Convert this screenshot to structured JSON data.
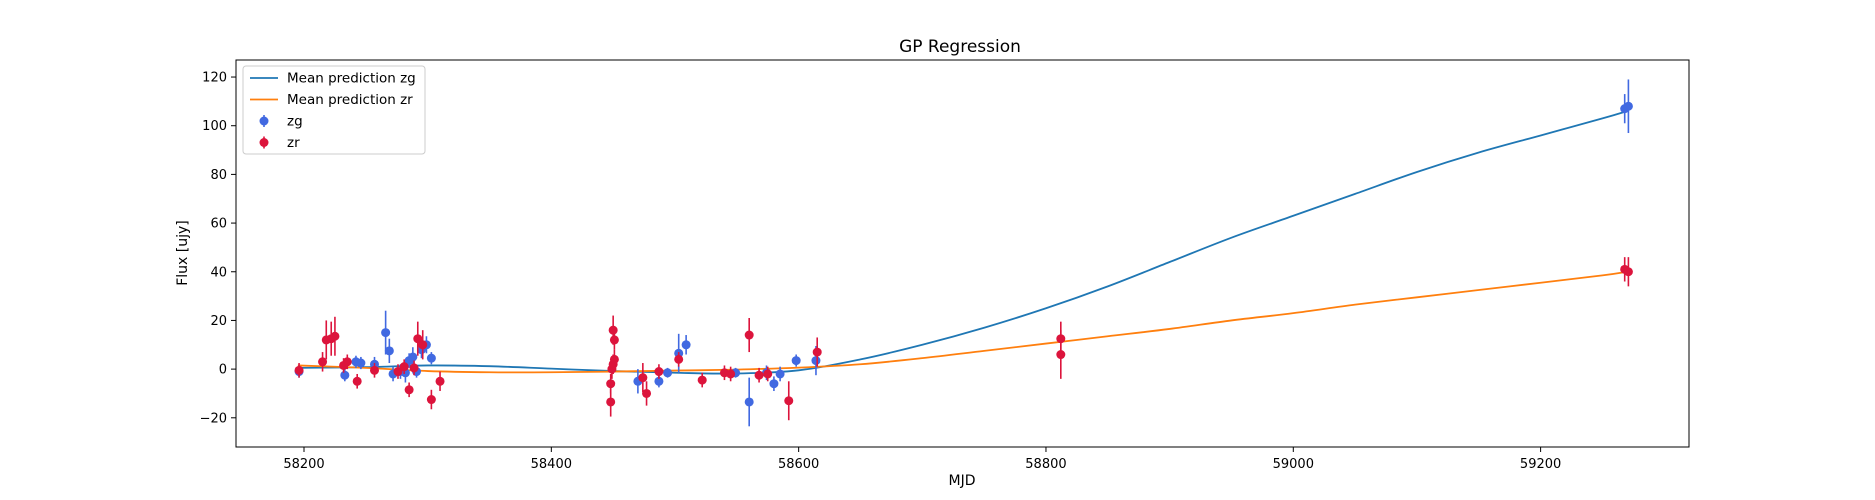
{
  "chart_data": {
    "type": "scatter",
    "title": "GP Regression",
    "xlabel": "MJD",
    "ylabel": "Flux [ujy]",
    "xlim": [
      58145,
      59320
    ],
    "ylim": [
      -32,
      127
    ],
    "xticks": [
      58200,
      58400,
      58600,
      58800,
      59000,
      59200
    ],
    "yticks": [
      -20,
      0,
      20,
      40,
      60,
      80,
      100,
      120
    ],
    "grid": false,
    "legend_position": "top-left",
    "colors": {
      "mean_zg": "#1f77b4",
      "mean_zr": "#ff7f0e",
      "zg": "#4169e1",
      "zr": "#dc143c"
    },
    "legend": [
      {
        "label": "Mean prediction zg",
        "kind": "line",
        "color": "#1f77b4"
      },
      {
        "label": "Mean prediction zr",
        "kind": "line",
        "color": "#ff7f0e"
      },
      {
        "label": "zg",
        "kind": "errorbar",
        "color": "#4169e1"
      },
      {
        "label": "zr",
        "kind": "errorbar",
        "color": "#dc143c"
      }
    ],
    "lines": [
      {
        "name": "Mean prediction zg",
        "color": "#1f77b4",
        "x": [
          58195,
          58250,
          58300,
          58350,
          58400,
          58450,
          58500,
          58550,
          58600,
          58650,
          58700,
          58750,
          58800,
          58850,
          58900,
          58950,
          59000,
          59050,
          59100,
          59150,
          59200,
          59250,
          59270
        ],
        "y": [
          0.5,
          0.8,
          1.5,
          1.2,
          0.2,
          -0.8,
          -1.5,
          -1.8,
          -0.5,
          4,
          10,
          17,
          25,
          34,
          44,
          54,
          63,
          72,
          81,
          89,
          96,
          103,
          106
        ]
      },
      {
        "name": "Mean prediction zr",
        "color": "#ff7f0e",
        "x": [
          58195,
          58250,
          58300,
          58350,
          58400,
          58450,
          58500,
          58550,
          58600,
          58650,
          58700,
          58750,
          58800,
          58850,
          58900,
          58950,
          59000,
          59050,
          59100,
          59150,
          59200,
          59250,
          59270
        ],
        "y": [
          1.5,
          0.5,
          -0.8,
          -1.3,
          -1.3,
          -1,
          -0.6,
          -0.2,
          0.6,
          2,
          4.5,
          7.5,
          10.5,
          13.5,
          16.5,
          20,
          23,
          26.5,
          29.5,
          32.5,
          35.5,
          38.5,
          40
        ]
      }
    ],
    "series": [
      {
        "name": "zg",
        "color": "#4169e1",
        "points": [
          {
            "x": 58196,
            "y": -1,
            "err": 2.5
          },
          {
            "x": 58233,
            "y": -2.5,
            "err": 2.5
          },
          {
            "x": 58242,
            "y": 3,
            "err": 2.5
          },
          {
            "x": 58246,
            "y": 2.5,
            "err": 2.5
          },
          {
            "x": 58257,
            "y": 2,
            "err": 3
          },
          {
            "x": 58266,
            "y": 15,
            "err": 9
          },
          {
            "x": 58269,
            "y": 7.5,
            "err": 5
          },
          {
            "x": 58272,
            "y": -2,
            "err": 3
          },
          {
            "x": 58278,
            "y": -1,
            "err": 3
          },
          {
            "x": 58282,
            "y": -1.5,
            "err": 4
          },
          {
            "x": 58285,
            "y": 3.5,
            "err": 3
          },
          {
            "x": 58288,
            "y": 5,
            "err": 4
          },
          {
            "x": 58291,
            "y": -1,
            "err": 2.5
          },
          {
            "x": 58295,
            "y": 8,
            "err": 3.5
          },
          {
            "x": 58299,
            "y": 10,
            "err": 3.5
          },
          {
            "x": 58303,
            "y": 4.5,
            "err": 2.5
          },
          {
            "x": 58470,
            "y": -5,
            "err": 5
          },
          {
            "x": 58487,
            "y": -5,
            "err": 2.5
          },
          {
            "x": 58494,
            "y": -1.5,
            "err": 2
          },
          {
            "x": 58503,
            "y": 6.5,
            "err": 8
          },
          {
            "x": 58509,
            "y": 10,
            "err": 4
          },
          {
            "x": 58549,
            "y": -1.5,
            "err": 2
          },
          {
            "x": 58560,
            "y": -13.5,
            "err": 10
          },
          {
            "x": 58574,
            "y": -1.5,
            "err": 3
          },
          {
            "x": 58580,
            "y": -6,
            "err": 3
          },
          {
            "x": 58585,
            "y": -2,
            "err": 3
          },
          {
            "x": 58598,
            "y": 3.5,
            "err": 2.5
          },
          {
            "x": 58614,
            "y": 3.5,
            "err": 6
          },
          {
            "x": 59268,
            "y": 107,
            "err": 6
          },
          {
            "x": 59271,
            "y": 108,
            "err": 11
          }
        ]
      },
      {
        "name": "zr",
        "color": "#dc143c",
        "points": [
          {
            "x": 58196,
            "y": -0.5,
            "err": 3
          },
          {
            "x": 58215,
            "y": 3,
            "err": 4
          },
          {
            "x": 58218,
            "y": 12,
            "err": 8
          },
          {
            "x": 58222,
            "y": 12.5,
            "err": 7
          },
          {
            "x": 58225,
            "y": 13.5,
            "err": 8
          },
          {
            "x": 58232,
            "y": 1.5,
            "err": 3
          },
          {
            "x": 58235,
            "y": 3,
            "err": 3
          },
          {
            "x": 58243,
            "y": -5,
            "err": 3
          },
          {
            "x": 58257,
            "y": -0.5,
            "err": 3
          },
          {
            "x": 58276,
            "y": -1,
            "err": 3
          },
          {
            "x": 58281,
            "y": 1,
            "err": 3
          },
          {
            "x": 58285,
            "y": -8.5,
            "err": 3
          },
          {
            "x": 58289,
            "y": 0.5,
            "err": 3
          },
          {
            "x": 58292,
            "y": 12.5,
            "err": 7
          },
          {
            "x": 58296,
            "y": 10,
            "err": 6
          },
          {
            "x": 58303,
            "y": -12.5,
            "err": 4
          },
          {
            "x": 58310,
            "y": -5,
            "err": 4
          },
          {
            "x": 58448,
            "y": -13.5,
            "err": 6
          },
          {
            "x": 58448,
            "y": -6,
            "err": 4
          },
          {
            "x": 58449,
            "y": 0,
            "err": 4
          },
          {
            "x": 58450,
            "y": 2,
            "err": 4
          },
          {
            "x": 58450,
            "y": 16,
            "err": 6
          },
          {
            "x": 58451,
            "y": 12,
            "err": 4
          },
          {
            "x": 58451,
            "y": 4,
            "err": 4
          },
          {
            "x": 58474,
            "y": -3.5,
            "err": 6
          },
          {
            "x": 58477,
            "y": -10,
            "err": 5
          },
          {
            "x": 58487,
            "y": -1,
            "err": 3
          },
          {
            "x": 58503,
            "y": 4,
            "err": 3
          },
          {
            "x": 58522,
            "y": -4.5,
            "err": 3
          },
          {
            "x": 58540,
            "y": -1.5,
            "err": 3
          },
          {
            "x": 58545,
            "y": -2,
            "err": 3
          },
          {
            "x": 58560,
            "y": 14,
            "err": 7
          },
          {
            "x": 58568,
            "y": -2.5,
            "err": 3
          },
          {
            "x": 58575,
            "y": -2,
            "err": 3
          },
          {
            "x": 58592,
            "y": -13,
            "err": 8
          },
          {
            "x": 58615,
            "y": 7,
            "err": 6
          },
          {
            "x": 58812,
            "y": 12.5,
            "err": 7
          },
          {
            "x": 58812,
            "y": 6,
            "err": 10
          },
          {
            "x": 59268,
            "y": 41,
            "err": 5
          },
          {
            "x": 59271,
            "y": 40,
            "err": 6
          }
        ]
      }
    ]
  }
}
